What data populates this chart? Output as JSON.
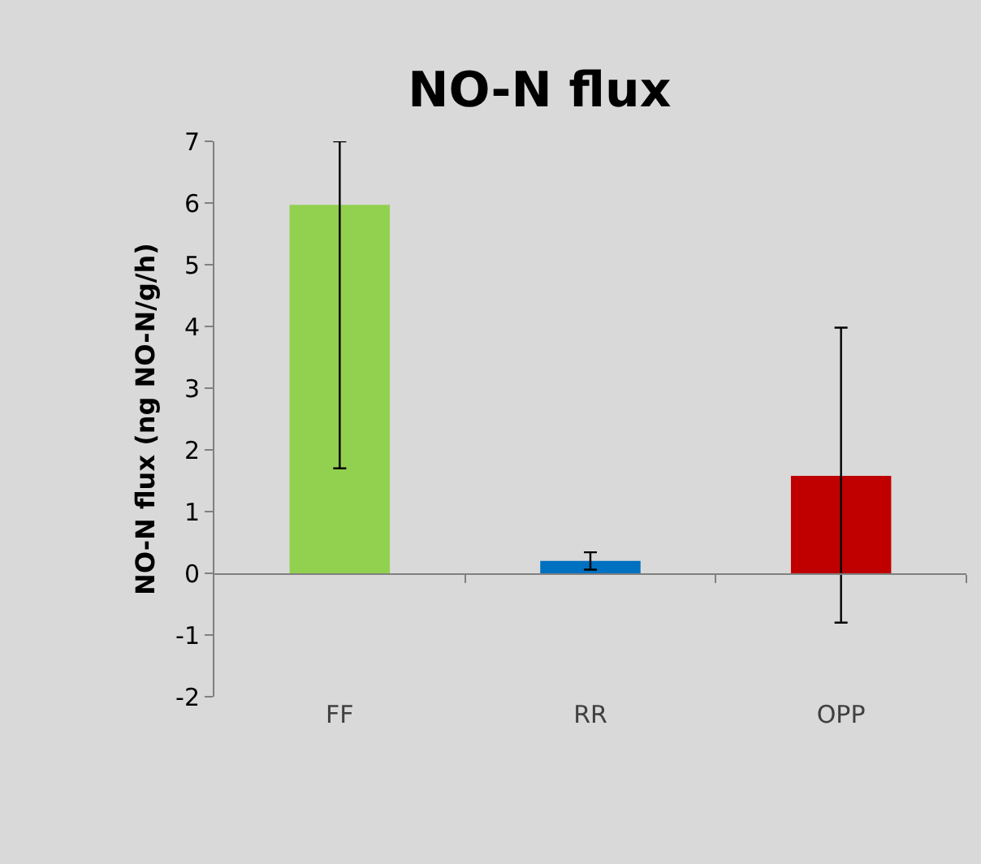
{
  "chart_data": {
    "type": "bar",
    "title": "NO-N flux",
    "ylabel": "NO-N flux (ng NO-N/g/h)",
    "categories": [
      "FF",
      "RR",
      "OPP"
    ],
    "values": [
      5.97,
      0.2,
      1.58
    ],
    "colors": [
      "#92d050",
      "#0070c0",
      "#c00000"
    ],
    "errors": [
      [
        1.7,
        7.0
      ],
      [
        0.06,
        0.34
      ],
      [
        -0.8,
        3.98
      ]
    ],
    "ylim": [
      -2,
      7
    ],
    "yticks": [
      -2,
      -1,
      0,
      1,
      2,
      3,
      4,
      5,
      6,
      7
    ]
  }
}
